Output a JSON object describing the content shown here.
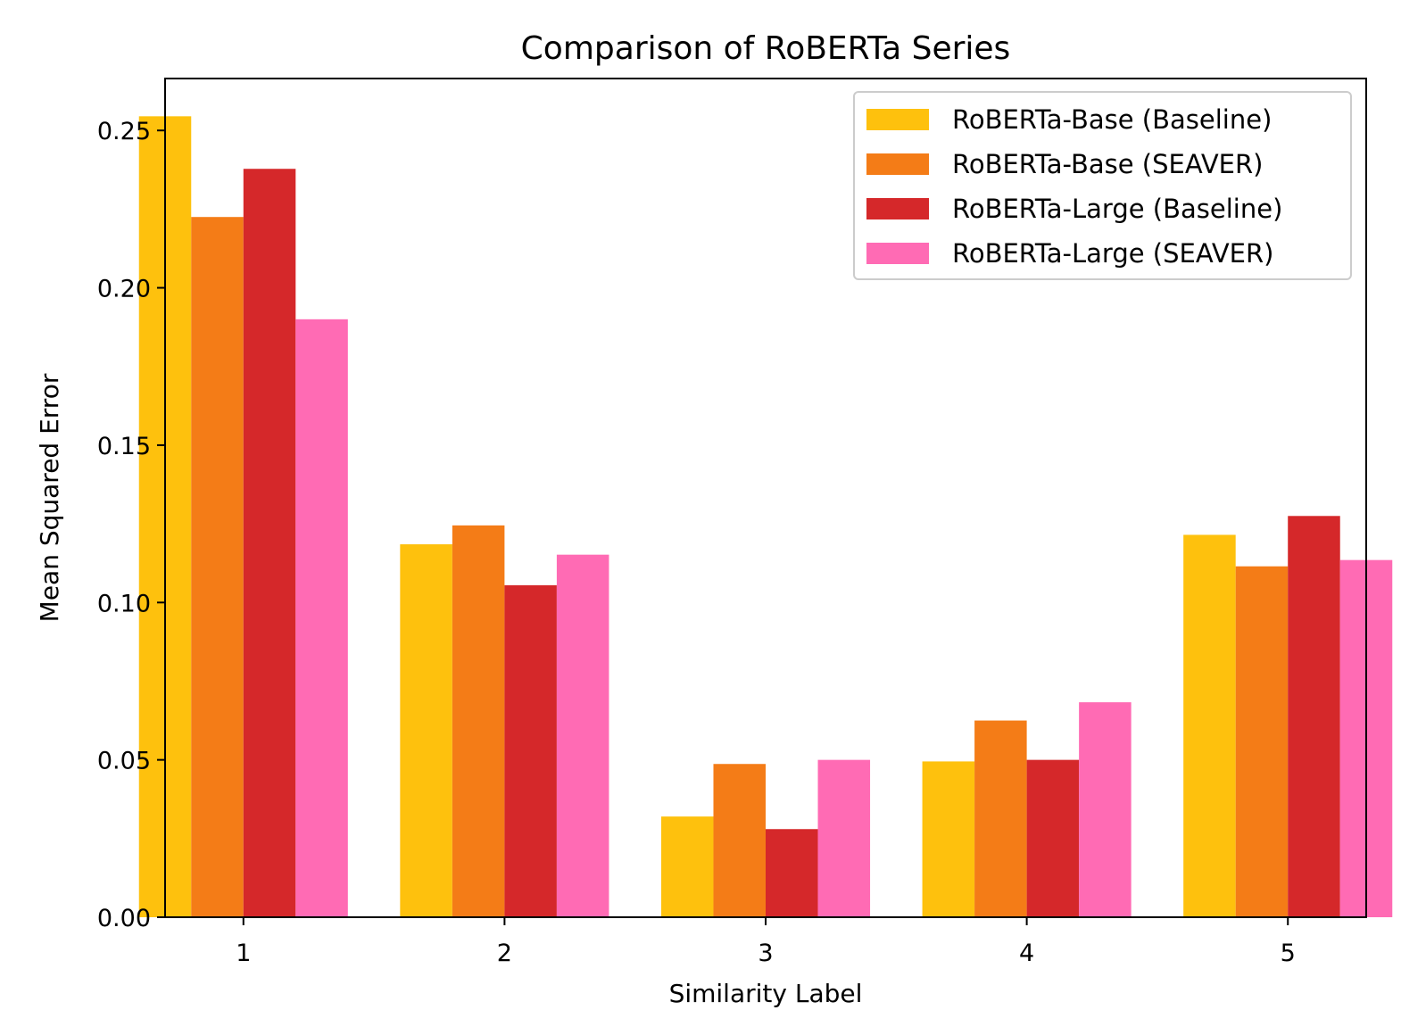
{
  "chart_data": {
    "type": "bar",
    "title": "Comparison of RoBERTa Series",
    "xlabel": "Similarity Label",
    "ylabel": "Mean Squared Error",
    "categories": [
      "1",
      "2",
      "3",
      "4",
      "5"
    ],
    "ylim": [
      0,
      0.2665
    ],
    "yticks": [
      0.0,
      0.05,
      0.1,
      0.15,
      0.2,
      0.25
    ],
    "ytick_labels": [
      "0.00",
      "0.05",
      "0.10",
      "0.15",
      "0.20",
      "0.25"
    ],
    "grid": false,
    "legend_position": "top-right",
    "series": [
      {
        "name": "RoBERTa-Base (Baseline)",
        "color": "#fec10d",
        "values": [
          0.2545,
          0.1185,
          0.032,
          0.0495,
          0.1215
        ]
      },
      {
        "name": "RoBERTa-Base (SEAVER)",
        "color": "#f47c17",
        "values": [
          0.2225,
          0.1245,
          0.0487,
          0.0625,
          0.1115
        ]
      },
      {
        "name": "RoBERTa-Large (Baseline)",
        "color": "#d5282a",
        "values": [
          0.2378,
          0.1055,
          0.028,
          0.05,
          0.1275
        ]
      },
      {
        "name": "RoBERTa-Large (SEAVER)",
        "color": "#ff6bb4",
        "values": [
          0.19,
          0.1152,
          0.05,
          0.0683,
          0.1135
        ]
      }
    ]
  }
}
